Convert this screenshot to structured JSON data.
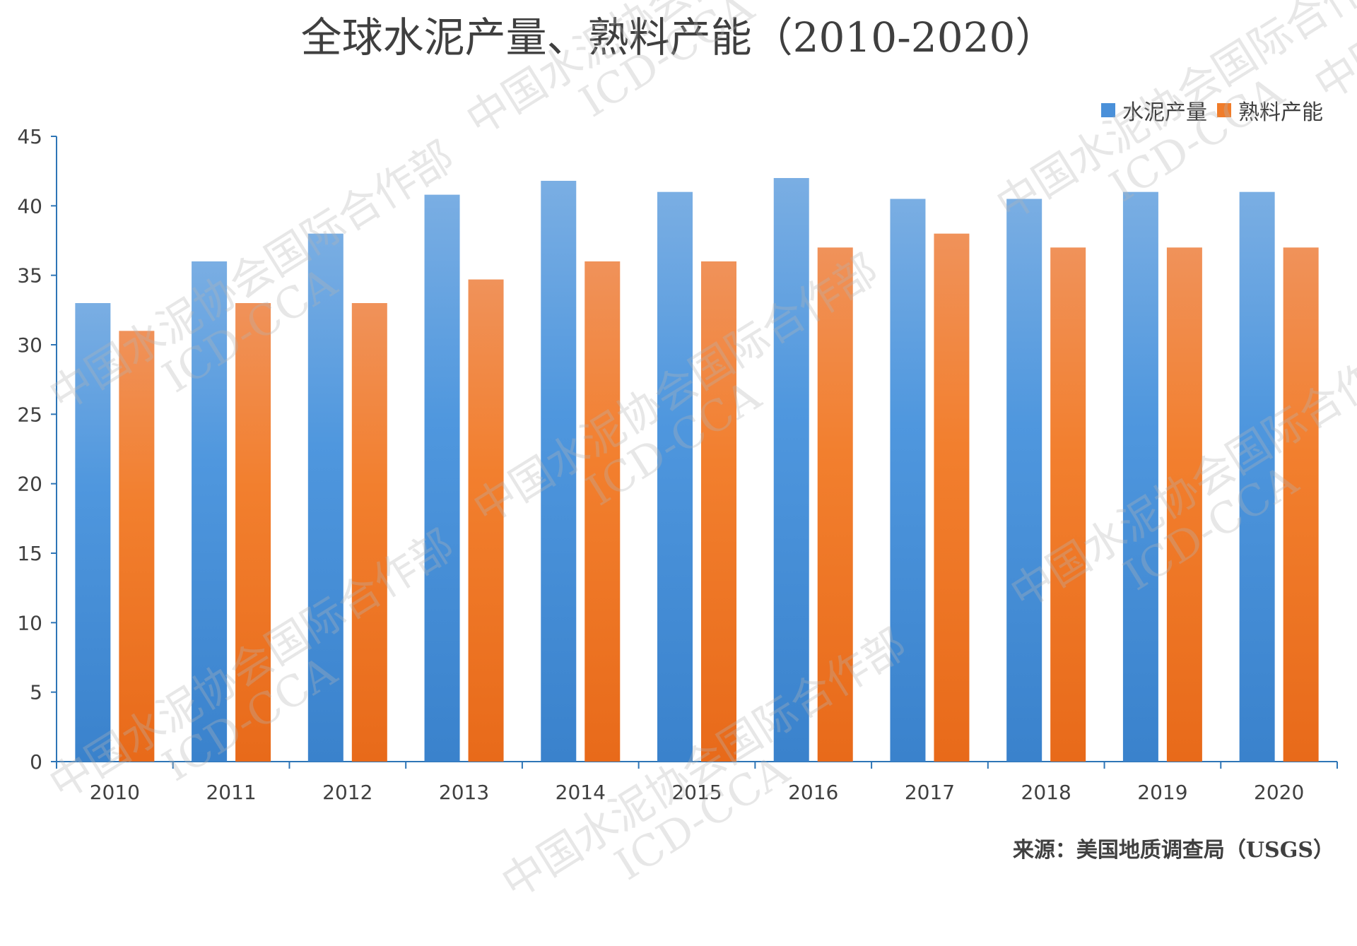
{
  "chart_data": {
    "type": "bar",
    "title": "全球水泥产量、熟料产能（2010-2020）",
    "categories": [
      "2010",
      "2011",
      "2012",
      "2013",
      "2014",
      "2015",
      "2016",
      "2017",
      "2018",
      "2019",
      "2020"
    ],
    "series": [
      {
        "name": "水泥产量",
        "color": "#4a90d9",
        "values": [
          33,
          36,
          38,
          40.8,
          41.8,
          41,
          42,
          40.5,
          40.5,
          41,
          41
        ]
      },
      {
        "name": "熟料产能",
        "color": "#f07c2a",
        "values": [
          31,
          33,
          33,
          34.7,
          36,
          36,
          37,
          38,
          37,
          37,
          37
        ]
      }
    ],
    "ylim": [
      0,
      45
    ],
    "yticks": [
      "0",
      "5",
      "10",
      "15",
      "20",
      "25",
      "30",
      "35",
      "40",
      "45"
    ],
    "xlabel": "",
    "ylabel": "",
    "grid": false,
    "legend_position": "top-right"
  },
  "source_note": "来源：美国地质调查局（USGS）",
  "watermark": {
    "line1": "中国水泥协会国际合作部",
    "line2": "ICD-CCA"
  }
}
